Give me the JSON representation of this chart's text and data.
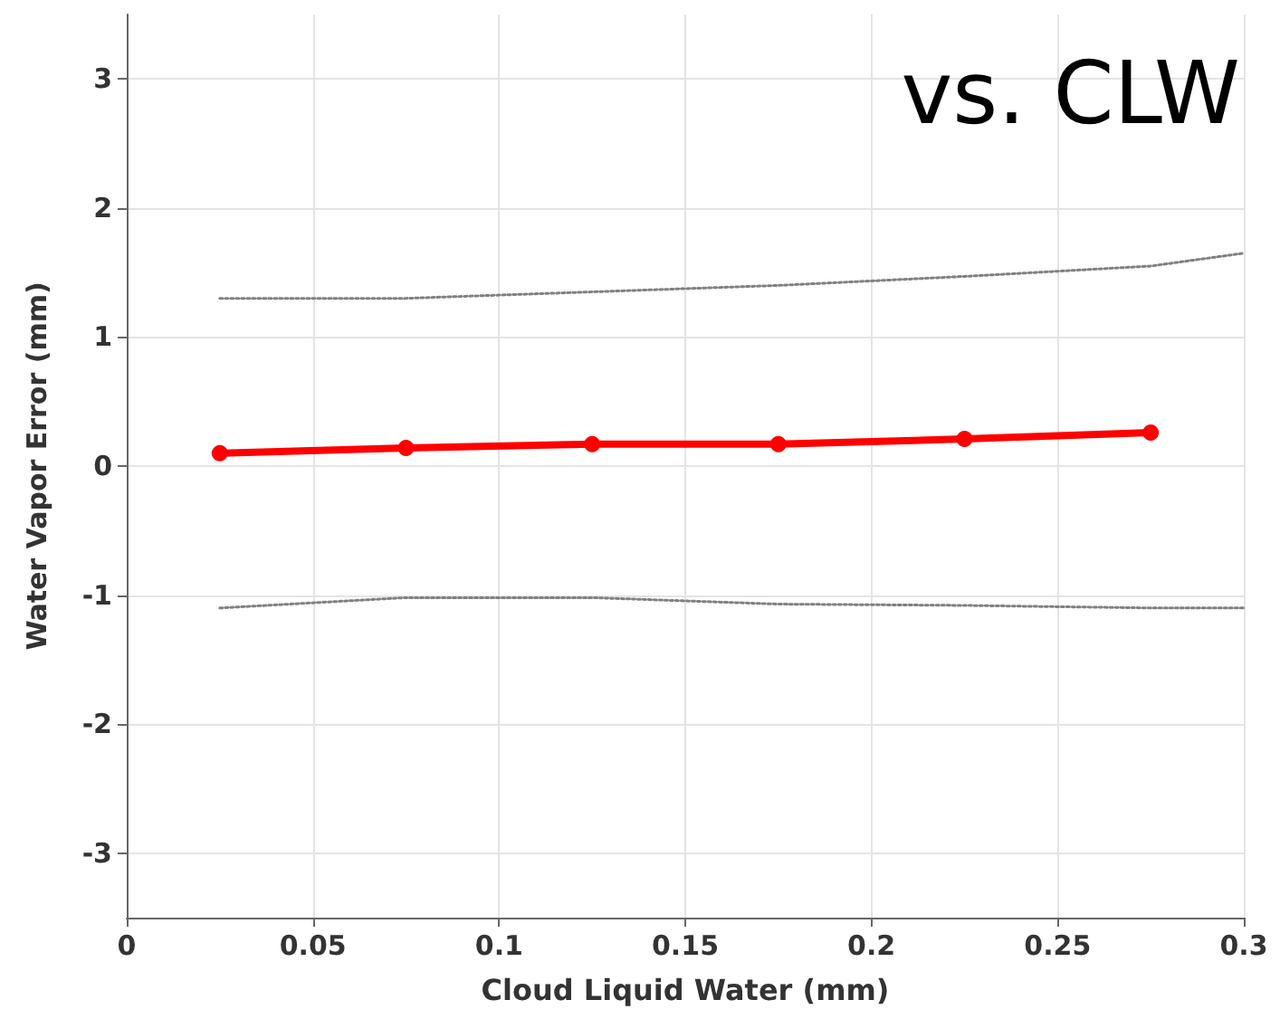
{
  "chart_data": {
    "type": "line",
    "xlabel": "Cloud Liquid Water (mm)",
    "ylabel": "Water Vapor Error (mm)",
    "annotations": [
      "vs. CLW"
    ],
    "x": [
      0.025,
      0.075,
      0.125,
      0.175,
      0.225,
      0.275
    ],
    "series": [
      {
        "color": "#ff0000",
        "marker": "circle",
        "line_style": "solid",
        "values": [
          0.1,
          0.14,
          0.17,
          0.17,
          0.21,
          0.26
        ]
      },
      {
        "color": "#808080",
        "marker": "none",
        "line_style": "dotted",
        "x": [
          0.025,
          0.075,
          0.125,
          0.175,
          0.225,
          0.275,
          0.3
        ],
        "values": [
          1.3,
          1.3,
          1.35,
          1.4,
          1.47,
          1.55,
          1.65
        ]
      },
      {
        "color": "#808080",
        "marker": "none",
        "line_style": "dotted",
        "x": [
          0.025,
          0.075,
          0.125,
          0.175,
          0.225,
          0.275,
          0.3
        ],
        "values": [
          -1.1,
          -1.02,
          -1.02,
          -1.07,
          -1.08,
          -1.1,
          -1.1
        ]
      }
    ],
    "xlim": [
      0,
      0.3
    ],
    "xticks": [
      0,
      0.05,
      0.1,
      0.15,
      0.2,
      0.25,
      0.3
    ],
    "ylim": [
      -3.5,
      3.5
    ],
    "yticks": [
      -3,
      -2,
      -1,
      0,
      1,
      2,
      3
    ],
    "grid": true
  }
}
